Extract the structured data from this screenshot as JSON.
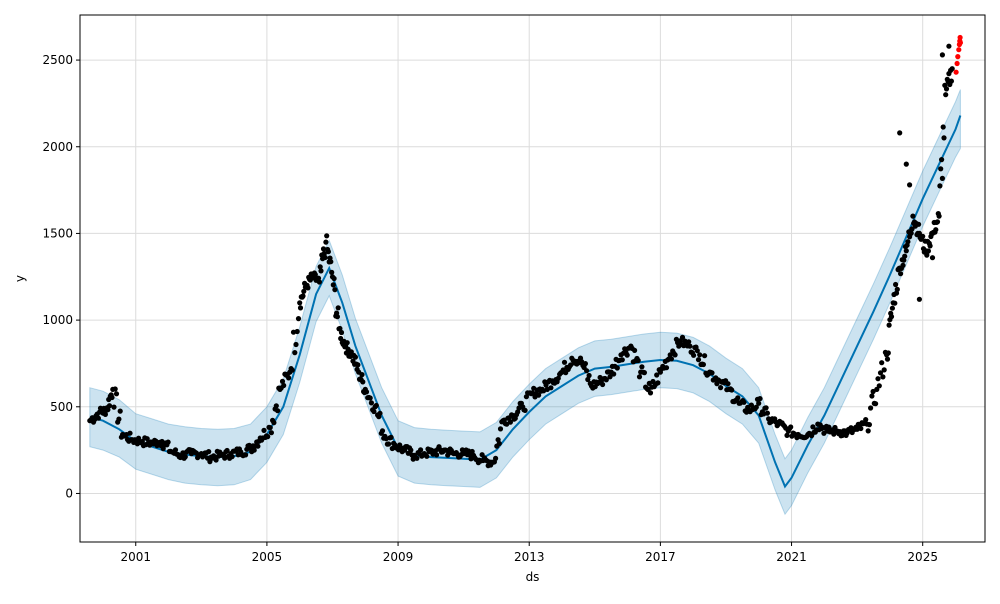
{
  "chart_data": {
    "type": "line",
    "title": "",
    "xlabel": "ds",
    "ylabel": "y",
    "x_type": "year",
    "xlim": [
      1999.3,
      2026.9
    ],
    "ylim": [
      -280,
      2760
    ],
    "x_ticks": [
      2001,
      2005,
      2009,
      2013,
      2017,
      2021,
      2025
    ],
    "x_tick_labels": [
      "2001",
      "2005",
      "2009",
      "2013",
      "2017",
      "2021",
      "2025"
    ],
    "y_ticks": [
      0,
      500,
      1000,
      1500,
      2000,
      2500
    ],
    "y_tick_labels": [
      "0",
      "500",
      "1000",
      "1500",
      "2000",
      "2500"
    ],
    "grid": true,
    "legend": "none",
    "colors": {
      "forecast_line": "#0072B2",
      "uncertainty_band": "#0072B2",
      "observed_points": "#000000",
      "highlight_points": "#ff0000",
      "grid": "#dcdcdc"
    },
    "series": [
      {
        "role": "forecast",
        "x": [
          1999.6,
          2000.0,
          2000.5,
          2001.0,
          2001.5,
          2002.0,
          2002.5,
          2003.0,
          2003.5,
          2004.0,
          2004.5,
          2005.0,
          2005.5,
          2006.0,
          2006.5,
          2006.9,
          2007.3,
          2007.7,
          2008.0,
          2008.5,
          2009.0,
          2009.5,
          2010.0,
          2010.5,
          2011.0,
          2011.5,
          2012.0,
          2012.5,
          2013.0,
          2013.5,
          2014.0,
          2014.5,
          2015.0,
          2015.5,
          2016.0,
          2016.5,
          2017.0,
          2017.5,
          2018.0,
          2018.5,
          2019.0,
          2019.5,
          2020.0,
          2020.5,
          2020.8,
          2021.0,
          2021.5,
          2022.0,
          2022.5,
          2023.0,
          2023.5,
          2024.0,
          2024.5,
          2025.0,
          2025.5,
          2026.0,
          2026.15
        ],
        "y": [
          440,
          420,
          370,
          300,
          270,
          240,
          225,
          215,
          210,
          215,
          240,
          340,
          500,
          800,
          1150,
          1300,
          1100,
          850,
          700,
          450,
          260,
          220,
          210,
          205,
          200,
          195,
          250,
          370,
          470,
          560,
          620,
          680,
          720,
          730,
          745,
          760,
          770,
          765,
          740,
          690,
          620,
          560,
          450,
          180,
          40,
          90,
          280,
          450,
          650,
          850,
          1050,
          1260,
          1480,
          1700,
          1900,
          2100,
          2180
        ],
        "lower": [
          270,
          250,
          210,
          140,
          110,
          80,
          60,
          50,
          45,
          50,
          80,
          180,
          340,
          640,
          990,
          1140,
          940,
          690,
          540,
          290,
          100,
          60,
          50,
          45,
          40,
          35,
          90,
          210,
          310,
          400,
          460,
          520,
          560,
          570,
          585,
          600,
          610,
          605,
          580,
          530,
          460,
          400,
          290,
          20,
          -120,
          -70,
          120,
          290,
          490,
          690,
          890,
          1100,
          1320,
          1540,
          1740,
          1940,
          1990
        ],
        "upper": [
          610,
          590,
          540,
          460,
          430,
          400,
          385,
          375,
          370,
          375,
          400,
          500,
          660,
          960,
          1310,
          1460,
          1260,
          1010,
          860,
          610,
          420,
          380,
          370,
          365,
          360,
          355,
          410,
          530,
          630,
          720,
          780,
          840,
          880,
          890,
          905,
          920,
          930,
          925,
          900,
          850,
          780,
          720,
          610,
          340,
          200,
          250,
          440,
          610,
          810,
          1010,
          1210,
          1420,
          1640,
          1860,
          2060,
          2260,
          2330
        ]
      },
      {
        "role": "observed",
        "x": [
          1999.6,
          1999.9,
          2000.1,
          2000.3,
          2000.6,
          2000.9,
          2001.2,
          2001.5,
          2001.8,
          2002.1,
          2002.4,
          2002.7,
          2003.0,
          2003.3,
          2003.6,
          2003.9,
          2004.2,
          2004.5,
          2004.8,
          2005.1,
          2005.4,
          2005.7,
          2006.0,
          2006.2,
          2006.4,
          2006.6,
          2006.8,
          2007.0,
          2007.2,
          2007.4,
          2007.6,
          2007.8,
          2008.0,
          2008.3,
          2008.6,
          2008.9,
          2009.2,
          2009.5,
          2009.8,
          2010.1,
          2010.4,
          2010.7,
          2011.0,
          2011.3,
          2011.6,
          2011.9,
          2012.2,
          2012.5,
          2012.8,
          2013.1,
          2013.4,
          2013.7,
          2014.0,
          2014.3,
          2014.6,
          2014.9,
          2015.2,
          2015.5,
          2015.8,
          2016.1,
          2016.4,
          2016.7,
          2017.0,
          2017.3,
          2017.6,
          2017.9,
          2018.2,
          2018.5,
          2018.8,
          2019.1,
          2019.4,
          2019.7,
          2020.0,
          2020.3,
          2020.6,
          2020.9,
          2021.2,
          2021.5,
          2021.8,
          2022.1,
          2022.4,
          2022.7,
          2023.0,
          2023.3,
          2023.6,
          2023.9,
          2024.1,
          2024.3,
          2024.5,
          2024.7,
          2024.9,
          2025.1,
          2025.3,
          2025.5,
          2025.7,
          2025.9
        ],
        "y": [
          420,
          470,
          480,
          600,
          340,
          310,
          300,
          290,
          300,
          240,
          220,
          230,
          230,
          210,
          220,
          230,
          240,
          260,
          320,
          380,
          600,
          700,
          1100,
          1200,
          1250,
          1220,
          1450,
          1250,
          950,
          850,
          800,
          700,
          600,
          500,
          330,
          280,
          250,
          220,
          230,
          240,
          250,
          230,
          230,
          220,
          190,
          180,
          420,
          450,
          500,
          580,
          600,
          650,
          700,
          780,
          760,
          620,
          650,
          700,
          800,
          850,
          700,
          580,
          700,
          800,
          880,
          850,
          800,
          700,
          650,
          600,
          520,
          480,
          520,
          430,
          400,
          360,
          340,
          340,
          400,
          360,
          360,
          350,
          370,
          400,
          600,
          800,
          1100,
          1300,
          1400,
          1600,
          1500,
          1400,
          1500,
          1600,
          2300,
          2450
        ],
        "extra_points": [
          {
            "x": 2024.3,
            "y": 2080
          },
          {
            "x": 2024.5,
            "y": 1900
          },
          {
            "x": 2024.6,
            "y": 1780
          },
          {
            "x": 2024.9,
            "y": 1120
          },
          {
            "x": 2025.3,
            "y": 1360
          },
          {
            "x": 2025.6,
            "y": 2530
          },
          {
            "x": 2025.8,
            "y": 2580
          }
        ]
      },
      {
        "role": "highlight",
        "x": [
          2026.02,
          2026.05,
          2026.07,
          2026.1,
          2026.12,
          2026.13,
          2026.14,
          2026.15
        ],
        "y": [
          2430,
          2480,
          2520,
          2560,
          2590,
          2610,
          2630,
          2600
        ]
      }
    ]
  }
}
